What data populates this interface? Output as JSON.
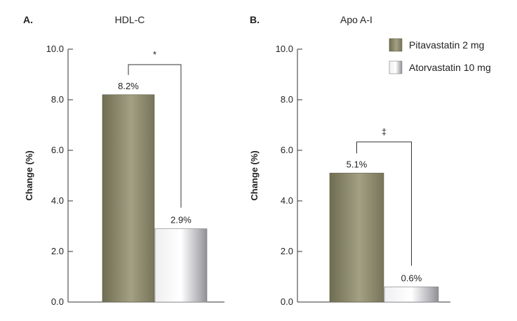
{
  "legend": [
    {
      "name": "Pitavastatin 2 mg",
      "color": "#8e8b6c"
    },
    {
      "name": "Atorvastatin 10 mg",
      "color": "#c8c8cc"
    }
  ],
  "chart_data": [
    {
      "type": "bar",
      "panel": "A.",
      "title": "HDL-C",
      "ylabel": "Change (%)",
      "ylim": [
        0,
        10
      ],
      "yticks": [
        "0.0",
        "2.0",
        "4.0",
        "6.0",
        "8.0",
        "10.0"
      ],
      "series": [
        {
          "name": "Pitavastatin 2 mg",
          "values": [
            8.2
          ],
          "label": "8.2%"
        },
        {
          "name": "Atorvastatin 10 mg",
          "values": [
            2.9
          ],
          "label": "2.9%"
        }
      ],
      "significance": "*"
    },
    {
      "type": "bar",
      "panel": "B.",
      "title": "Apo A-I",
      "ylabel": "Change (%)",
      "ylim": [
        0,
        10
      ],
      "yticks": [
        "0.0",
        "2.0",
        "4.0",
        "6.0",
        "8.0",
        "10.0"
      ],
      "series": [
        {
          "name": "Pitavastatin 2 mg",
          "values": [
            5.1
          ],
          "label": "5.1%"
        },
        {
          "name": "Atorvastatin 10 mg",
          "values": [
            0.6
          ],
          "label": "0.6%"
        }
      ],
      "significance": "‡"
    }
  ]
}
